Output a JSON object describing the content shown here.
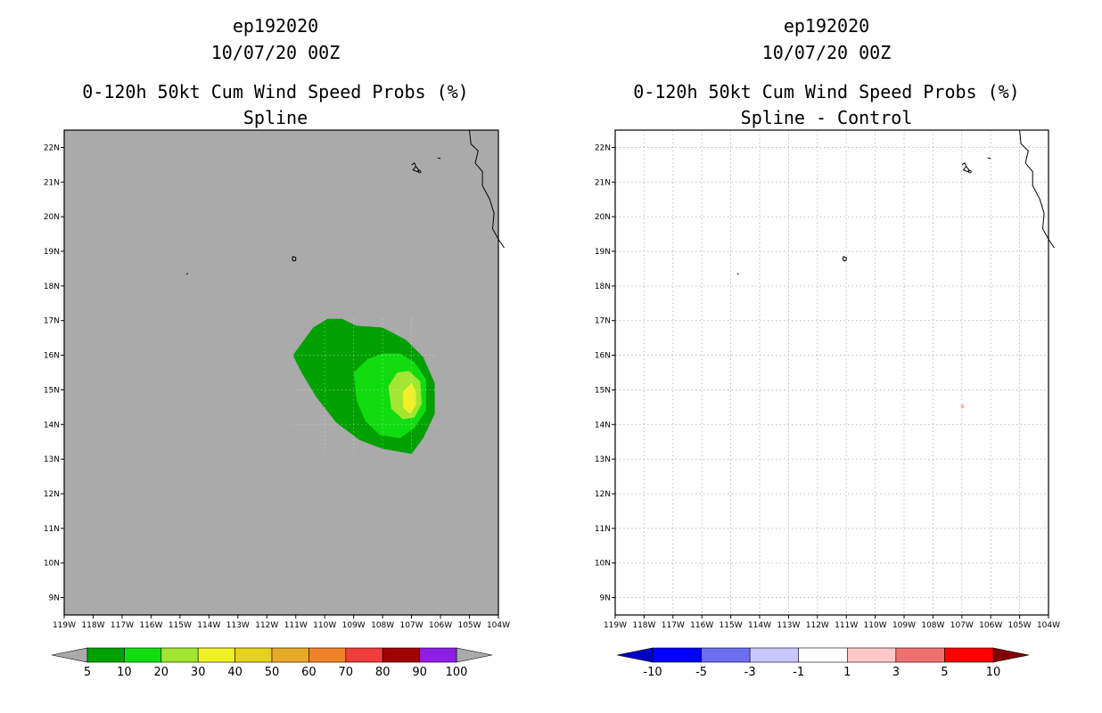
{
  "chart_data": [
    {
      "type": "map-contour",
      "storm_id": "ep192020",
      "date": "10/07/20 00Z",
      "title": "0-120h 50kt Cum Wind Speed Probs (%)",
      "subtitle": "Spline",
      "lon_range": [
        -119,
        -104
      ],
      "lat_range": [
        8.5,
        22.5
      ],
      "x_ticks": [
        "119W",
        "118W",
        "117W",
        "116W",
        "115W",
        "114W",
        "113W",
        "112W",
        "111W",
        "110W",
        "109W",
        "108W",
        "107W",
        "106W",
        "105W",
        "104W"
      ],
      "y_ticks": [
        "9N",
        "10N",
        "11N",
        "12N",
        "13N",
        "14N",
        "15N",
        "16N",
        "17N",
        "18N",
        "19N",
        "20N",
        "21N",
        "22N"
      ],
      "background_color": "#aaaaaa",
      "colorbar": {
        "labels": [
          "5",
          "10",
          "20",
          "30",
          "40",
          "50",
          "60",
          "70",
          "80",
          "90",
          "100"
        ],
        "colors": [
          "#00a000",
          "#10dc10",
          "#a0e632",
          "#f0f028",
          "#e6d21e",
          "#e6aa28",
          "#f08228",
          "#f03c3c",
          "#a00000",
          "#8c1ee6"
        ],
        "arrow_color": "#aaaaaa"
      },
      "contours": [
        {
          "level": 5,
          "color": "#00a000",
          "polygon": [
            [
              -111.1,
              16.0
            ],
            [
              -110.4,
              16.8
            ],
            [
              -109.9,
              17.05
            ],
            [
              -109.4,
              17.05
            ],
            [
              -108.9,
              16.85
            ],
            [
              -108.0,
              16.8
            ],
            [
              -107.2,
              16.45
            ],
            [
              -106.6,
              15.95
            ],
            [
              -106.2,
              15.2
            ],
            [
              -106.2,
              14.3
            ],
            [
              -106.6,
              13.6
            ],
            [
              -107.0,
              13.15
            ],
            [
              -108.0,
              13.3
            ],
            [
              -108.8,
              13.55
            ],
            [
              -109.6,
              14.05
            ],
            [
              -110.3,
              14.8
            ],
            [
              -110.8,
              15.5
            ]
          ]
        },
        {
          "level": 10,
          "color": "#10dc10",
          "polygon": [
            [
              -109.0,
              15.5
            ],
            [
              -108.5,
              15.9
            ],
            [
              -108.0,
              16.05
            ],
            [
              -107.4,
              16.05
            ],
            [
              -106.9,
              15.8
            ],
            [
              -106.5,
              15.3
            ],
            [
              -106.5,
              14.4
            ],
            [
              -106.9,
              13.9
            ],
            [
              -107.4,
              13.6
            ],
            [
              -108.1,
              13.7
            ],
            [
              -108.6,
              14.1
            ],
            [
              -108.9,
              14.7
            ]
          ]
        },
        {
          "level": 20,
          "color": "#a0e632",
          "polygon": [
            [
              -107.8,
              15.1
            ],
            [
              -107.5,
              15.5
            ],
            [
              -107.1,
              15.55
            ],
            [
              -106.7,
              15.25
            ],
            [
              -106.65,
              14.6
            ],
            [
              -106.9,
              14.2
            ],
            [
              -107.3,
              14.15
            ],
            [
              -107.7,
              14.45
            ]
          ]
        },
        {
          "level": 30,
          "color": "#f0f028",
          "polygon": [
            [
              -107.3,
              14.95
            ],
            [
              -107.0,
              15.2
            ],
            [
              -106.85,
              14.95
            ],
            [
              -106.85,
              14.55
            ],
            [
              -107.05,
              14.3
            ],
            [
              -107.3,
              14.5
            ]
          ]
        }
      ]
    },
    {
      "type": "map-contour",
      "storm_id": "ep192020",
      "date": "10/07/20 00Z",
      "title": "0-120h 50kt Cum Wind Speed Probs (%)",
      "subtitle": "Spline - Control",
      "lon_range": [
        -119,
        -104
      ],
      "lat_range": [
        8.5,
        22.5
      ],
      "x_ticks": [
        "119W",
        "118W",
        "117W",
        "116W",
        "115W",
        "114W",
        "113W",
        "112W",
        "111W",
        "110W",
        "109W",
        "108W",
        "107W",
        "106W",
        "105W",
        "104W"
      ],
      "y_ticks": [
        "9N",
        "10N",
        "11N",
        "12N",
        "13N",
        "14N",
        "15N",
        "16N",
        "17N",
        "18N",
        "19N",
        "20N",
        "21N",
        "22N"
      ],
      "background_color": "#ffffff",
      "grid": true,
      "colorbar": {
        "labels": [
          "-10",
          "-5",
          "-3",
          "-1",
          "1",
          "3",
          "5",
          "10"
        ],
        "colors": [
          "#0000ff",
          "#6e6ef0",
          "#c8c8ff",
          "#ffffff",
          "#ffc8c8",
          "#f07070",
          "#ff0000"
        ],
        "arrow_left_color": "#0000c8",
        "arrow_right_color": "#820000"
      },
      "contours": [
        {
          "level": 1,
          "color": "#ffb4b4",
          "polygon": [
            [
              -107.05,
              14.55
            ],
            [
              -106.95,
              14.6
            ],
            [
              -106.9,
              14.5
            ],
            [
              -107.0,
              14.45
            ]
          ]
        }
      ]
    }
  ]
}
